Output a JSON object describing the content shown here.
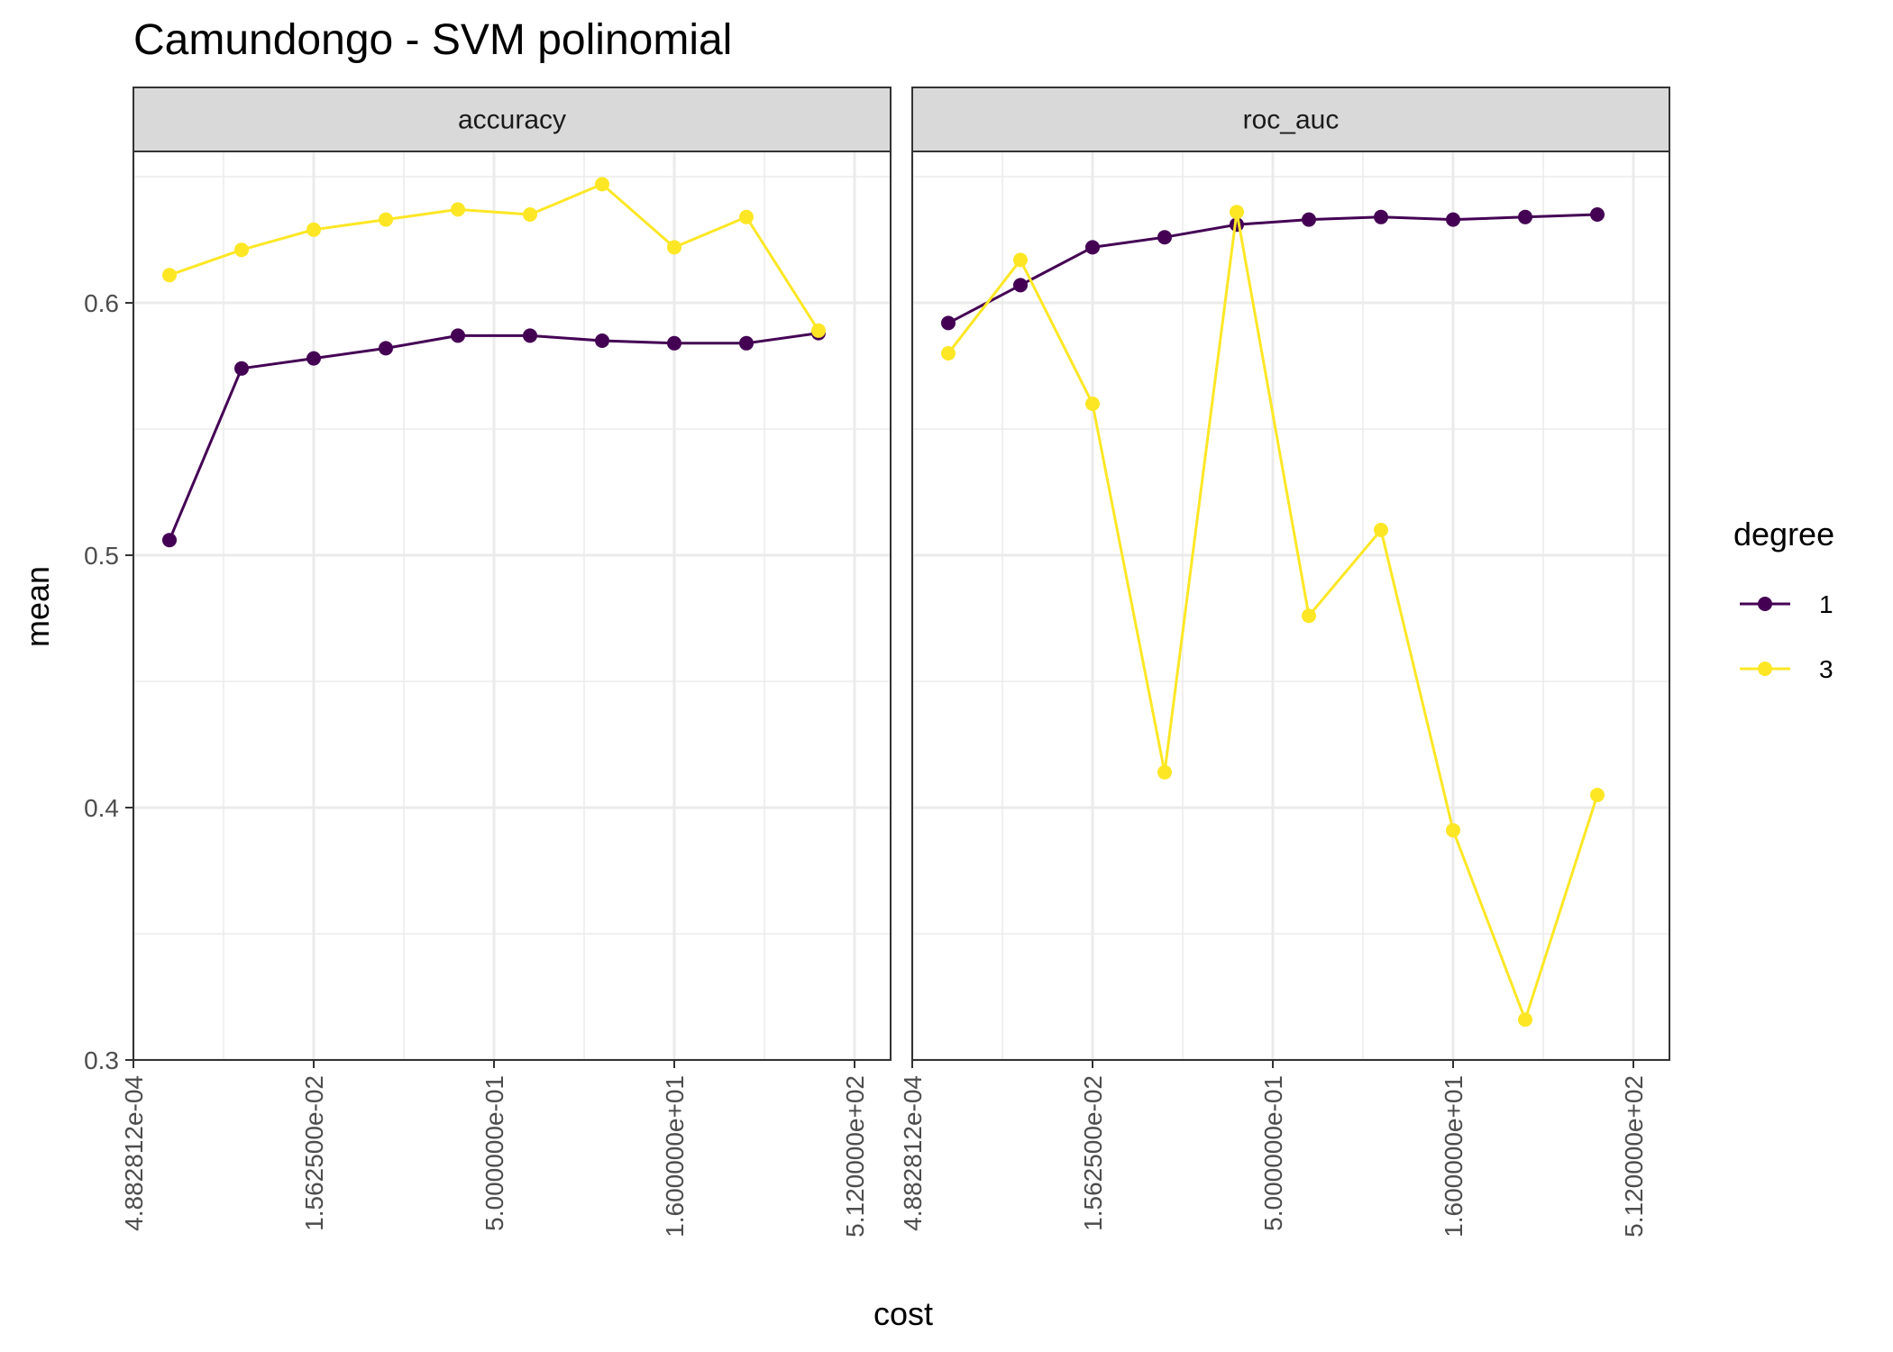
{
  "chart_data": {
    "type": "line",
    "title": "Camundongo - SVM polinomial",
    "xlabel": "cost",
    "ylabel": "mean",
    "x_scale": "log2",
    "x": [
      0.0009765625,
      0.00390625,
      0.015625,
      0.0625,
      0.25,
      1,
      4,
      16,
      64,
      256,
      1024
    ],
    "x_ticks": [
      0.00048828125,
      0.015625,
      0.5,
      16,
      512
    ],
    "x_tick_labels": [
      "4.882812e-04",
      "1.562500e-02",
      "5.000000e-01",
      "1.600000e+01",
      "5.120000e+02"
    ],
    "ylim": [
      0.3,
      0.66
    ],
    "y_ticks": [
      0.3,
      0.4,
      0.5,
      0.6
    ],
    "y_tick_labels": [
      "0.3",
      "0.4",
      "0.5",
      "0.6"
    ],
    "legend": {
      "title": "degree",
      "position": "right"
    },
    "panels": [
      {
        "strip": "accuracy",
        "series": [
          {
            "name": "1",
            "color": "#440154",
            "values": [
              0.506,
              0.574,
              0.578,
              0.582,
              0.587,
              0.587,
              0.585,
              0.584,
              0.584,
              0.588,
              null
            ]
          },
          {
            "name": "3",
            "color": "#FDE725",
            "values": [
              0.611,
              0.621,
              0.629,
              0.633,
              0.637,
              0.635,
              0.647,
              0.622,
              0.634,
              0.589,
              null
            ]
          }
        ]
      },
      {
        "strip": "roc_auc",
        "series": [
          {
            "name": "1",
            "color": "#440154",
            "values": [
              0.592,
              0.607,
              0.622,
              0.626,
              0.631,
              0.633,
              0.634,
              0.633,
              0.634,
              0.635,
              null
            ]
          },
          {
            "name": "3",
            "color": "#FDE725",
            "values": [
              0.58,
              0.617,
              0.56,
              0.414,
              0.636,
              0.476,
              0.51,
              0.391,
              0.316,
              0.405,
              null
            ]
          }
        ]
      }
    ]
  }
}
